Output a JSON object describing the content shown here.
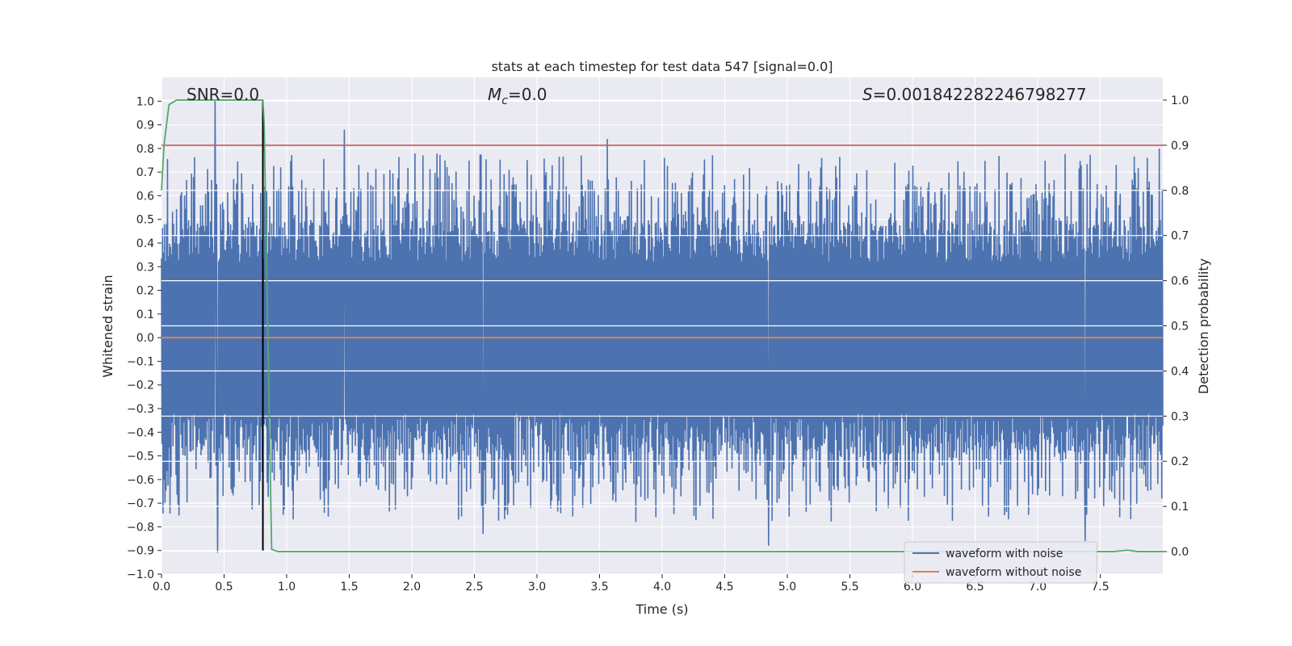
{
  "chart_data": {
    "type": "line",
    "title": "stats at each timestep for test data 547 [signal=0.0]",
    "xlabel": "Time (s)",
    "ylabel": "Whitened strain",
    "y2label": "Detection probability",
    "xlim": [
      0.0,
      8.0
    ],
    "ylim": [
      -1.0,
      1.1
    ],
    "y2lim": [
      -0.05,
      1.05
    ],
    "x_ticks": [
      0.0,
      0.5,
      1.0,
      1.5,
      2.0,
      2.5,
      3.0,
      3.5,
      4.0,
      4.5,
      5.0,
      5.5,
      6.0,
      6.5,
      7.0,
      7.5
    ],
    "x_tick_labels": [
      "0.0",
      "0.5",
      "1.0",
      "1.5",
      "2.0",
      "2.5",
      "3.0",
      "3.5",
      "4.0",
      "4.5",
      "5.0",
      "5.5",
      "6.0",
      "6.5",
      "7.0",
      "7.5"
    ],
    "y_ticks": [
      1.0,
      0.9,
      0.8,
      0.7,
      0.6,
      0.5,
      0.4,
      0.3,
      0.2,
      0.1,
      0.0,
      -0.1,
      -0.2,
      -0.3,
      -0.4,
      -0.5,
      -0.6,
      -0.7,
      -0.8,
      -0.9,
      -1.0
    ],
    "y_tick_labels": [
      "1.0",
      "0.9",
      "0.8",
      "0.7",
      "0.6",
      "0.5",
      "0.4",
      "0.3",
      "0.2",
      "0.1",
      "0.0",
      "−0.1",
      "−0.2",
      "−0.3",
      "−0.4",
      "−0.5",
      "−0.6",
      "−0.7",
      "−0.8",
      "−0.9",
      "−1.0"
    ],
    "y2_ticks": [
      1.0,
      0.9,
      0.8,
      0.7,
      0.6,
      0.5,
      0.4,
      0.3,
      0.2,
      0.1,
      0.0
    ],
    "y2_tick_labels": [
      "1.0",
      "0.9",
      "0.8",
      "0.7",
      "0.6",
      "0.5",
      "0.4",
      "0.3",
      "0.2",
      "0.1",
      "0.0"
    ],
    "annotations": {
      "snr": "SNR=0.0",
      "mc_symbol": "M",
      "mc_sub": "c",
      "mc_value": "=0.0",
      "s_symbol": "S",
      "s_value": "=0.001842282246798277"
    },
    "legend": {
      "location": "lower right",
      "entries": [
        "waveform with noise",
        "waveform without noise"
      ]
    },
    "series": [
      {
        "name": "waveform with noise",
        "axis": "left",
        "color": "#4c72b0",
        "description": "dense noise, amplitude roughly within -0.9 to 1.0",
        "noise_seed": 547,
        "n_samples": 2000,
        "peaks": [
          {
            "x": 0.43,
            "y": 1.0
          },
          {
            "x": 0.45,
            "y": -0.91
          },
          {
            "x": 1.46,
            "y": 0.88
          },
          {
            "x": 3.56,
            "y": 0.84
          },
          {
            "x": 4.85,
            "y": -0.88
          },
          {
            "x": 2.57,
            "y": -0.83
          },
          {
            "x": 7.38,
            "y": -0.86
          },
          {
            "x": 7.97,
            "y": 0.8
          }
        ]
      },
      {
        "name": "waveform without noise",
        "axis": "left",
        "color": "#dd8452",
        "x": [
          0.0,
          8.0
        ],
        "y": [
          0.0,
          0.0
        ]
      },
      {
        "name": "detection probability",
        "axis": "right",
        "color": "#55a868",
        "x": [
          0.0,
          0.02,
          0.06,
          0.12,
          0.3,
          0.6,
          0.81,
          0.82,
          0.88,
          0.93,
          1.0,
          2.0,
          4.0,
          6.0,
          7.6,
          7.72,
          7.8,
          8.0
        ],
        "y": [
          0.8,
          0.9,
          0.99,
          1.0,
          1.0,
          1.0,
          1.0,
          0.95,
          0.005,
          0.0,
          0.0,
          0.0,
          0.0,
          0.0,
          0.0,
          0.003,
          0.0,
          0.0
        ]
      }
    ],
    "threshold": {
      "axis": "right",
      "y": 0.9,
      "color": "#c44e52"
    },
    "merger_marker": {
      "axis": "left",
      "x": 0.81,
      "y_from": -0.9,
      "y_to": 1.0,
      "color": "#000000"
    }
  }
}
